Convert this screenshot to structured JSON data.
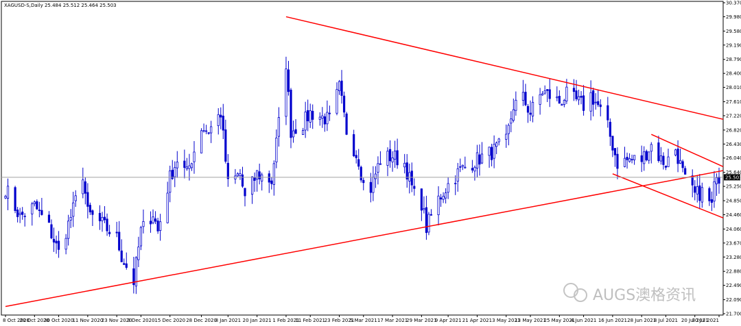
{
  "chart_data": {
    "type": "candlestick",
    "header": "XAGUSD-S,Daily  25.484 25.512 25.464 25.503",
    "current_price": "25.503",
    "current_value": 25.503,
    "ylim": [
      21.7,
      30.37
    ],
    "y_ticks": [
      "30.370",
      "29.980",
      "29.580",
      "29.190",
      "28.790",
      "28.400",
      "28.010",
      "27.610",
      "27.220",
      "26.820",
      "26.430",
      "26.040",
      "25.640",
      "25.250",
      "24.850",
      "24.460",
      "24.060",
      "23.670",
      "23.280",
      "22.880",
      "22.490",
      "22.090",
      "21.700"
    ],
    "x_dates": [
      "2020-10-08",
      "2020-10-20",
      "2020-10-30",
      "2020-11-11",
      "2020-11-23",
      "2020-12-03",
      "2020-12-15",
      "2020-12-28",
      "2021-01-08",
      "2021-01-20",
      "2021-02-01",
      "2021-02-11",
      "2021-02-23",
      "2021-03-05",
      "2021-03-17",
      "2021-03-29",
      "2021-04-09",
      "2021-04-21",
      "2021-05-03",
      "2021-05-13",
      "2021-05-25",
      "2021-06-04",
      "2021-06-16",
      "2021-06-28",
      "2021-07-08",
      "2021-07-20",
      "2021-07-30"
    ],
    "x_ticks": [
      "8 Oct 2020",
      "20 Oct 2020",
      "30 Oct 2020",
      "11 Nov 2020",
      "23 Nov 2020",
      "3 Dec 2020",
      "15 Dec 2020",
      "28 Dec 2020",
      "8 Jan 2021",
      "20 Jan 2021",
      "1 Feb 2021",
      "11 Feb 2021",
      "23 Feb 2021",
      "5 Mar 2021",
      "17 Mar 2021",
      "29 Mar 2021",
      "9 Apr 2021",
      "21 Apr 2021",
      "3 May 2021",
      "13 May 2021",
      "25 May 2021",
      "4 Jun 2021",
      "16 Jun 2021",
      "28 Jun 2021",
      "8 Jul 2021",
      "20 Jul 2021",
      "30 Jul 2021"
    ],
    "close_path": [
      [
        "2020-10-08",
        25.2
      ],
      [
        "2020-10-14",
        24.4
      ],
      [
        "2020-10-20",
        24.7
      ],
      [
        "2020-10-26",
        24.1
      ],
      [
        "2020-10-30",
        23.4
      ],
      [
        "2020-11-05",
        24.6
      ],
      [
        "2020-11-09",
        25.6
      ],
      [
        "2020-11-11",
        24.5
      ],
      [
        "2020-11-17",
        24.2
      ],
      [
        "2020-11-23",
        23.8
      ],
      [
        "2020-11-25",
        23.3
      ],
      [
        "2020-11-30",
        22.6
      ],
      [
        "2020-12-03",
        24.0
      ],
      [
        "2020-12-08",
        24.5
      ],
      [
        "2020-12-10",
        24.0
      ],
      [
        "2020-12-15",
        25.5
      ],
      [
        "2020-12-18",
        26.0
      ],
      [
        "2020-12-22",
        25.6
      ],
      [
        "2020-12-28",
        26.9
      ],
      [
        "2020-12-31",
        26.8
      ],
      [
        "2021-01-05",
        27.3
      ],
      [
        "2021-01-08",
        25.3
      ],
      [
        "2021-01-13",
        25.6
      ],
      [
        "2021-01-15",
        24.9
      ],
      [
        "2021-01-20",
        25.6
      ],
      [
        "2021-01-26",
        25.4
      ],
      [
        "2021-01-29",
        27.0
      ],
      [
        "2021-02-01",
        28.7
      ],
      [
        "2021-02-03",
        26.8
      ],
      [
        "2021-02-08",
        27.0
      ],
      [
        "2021-02-11",
        27.3
      ],
      [
        "2021-02-19",
        27.1
      ],
      [
        "2021-02-23",
        28.0
      ],
      [
        "2021-02-26",
        26.8
      ],
      [
        "2021-03-03",
        26.0
      ],
      [
        "2021-03-05",
        25.3
      ],
      [
        "2021-03-08",
        25.2
      ],
      [
        "2021-03-12",
        26.0
      ],
      [
        "2021-03-17",
        26.1
      ],
      [
        "2021-03-22",
        25.9
      ],
      [
        "2021-03-26",
        25.0
      ],
      [
        "2021-03-29",
        24.8
      ],
      [
        "2021-03-31",
        24.1
      ],
      [
        "2021-04-05",
        24.9
      ],
      [
        "2021-04-09",
        25.3
      ],
      [
        "2021-04-14",
        25.7
      ],
      [
        "2021-04-21",
        26.0
      ],
      [
        "2021-04-27",
        26.2
      ],
      [
        "2021-05-03",
        26.5
      ],
      [
        "2021-05-06",
        27.5
      ],
      [
        "2021-05-10",
        27.7
      ],
      [
        "2021-05-13",
        27.3
      ],
      [
        "2021-05-18",
        27.9
      ],
      [
        "2021-05-25",
        27.6
      ],
      [
        "2021-05-28",
        27.8
      ],
      [
        "2021-06-04",
        27.5
      ],
      [
        "2021-06-07",
        27.8
      ],
      [
        "2021-06-10",
        27.5
      ],
      [
        "2021-06-14",
        26.9
      ],
      [
        "2021-06-16",
        26.4
      ],
      [
        "2021-06-18",
        25.9
      ],
      [
        "2021-06-23",
        26.0
      ],
      [
        "2021-06-28",
        26.0
      ],
      [
        "2021-07-02",
        26.4
      ],
      [
        "2021-07-06",
        26.0
      ],
      [
        "2021-07-08",
        25.9
      ],
      [
        "2021-07-12",
        26.3
      ],
      [
        "2021-07-16",
        25.4
      ],
      [
        "2021-07-20",
        25.0
      ],
      [
        "2021-07-23",
        25.1
      ],
      [
        "2021-07-27",
        24.7
      ],
      [
        "2021-07-29",
        25.7
      ],
      [
        "2021-07-30",
        25.5
      ]
    ],
    "trendlines": [
      {
        "name": "upper-resistance",
        "color": "#ff0000",
        "from": [
          "2021-02-01",
          29.98
        ],
        "to": [
          "2021-08-03",
          27.12
        ]
      },
      {
        "name": "lower-support",
        "color": "#ff0000",
        "from": [
          "2020-10-08",
          21.9
        ],
        "to": [
          "2021-08-03",
          25.69
        ]
      },
      {
        "name": "channel-top",
        "color": "#ff0000",
        "from": [
          "2021-07-02",
          26.7
        ],
        "to": [
          "2021-08-03",
          25.8
        ]
      },
      {
        "name": "channel-bottom",
        "color": "#ff0000",
        "from": [
          "2021-06-16",
          25.6
        ],
        "to": [
          "2021-08-03",
          24.37
        ]
      }
    ],
    "candle_color": "#0000cd",
    "grid": false
  },
  "watermark": {
    "text": "AUGS澳格资讯"
  }
}
